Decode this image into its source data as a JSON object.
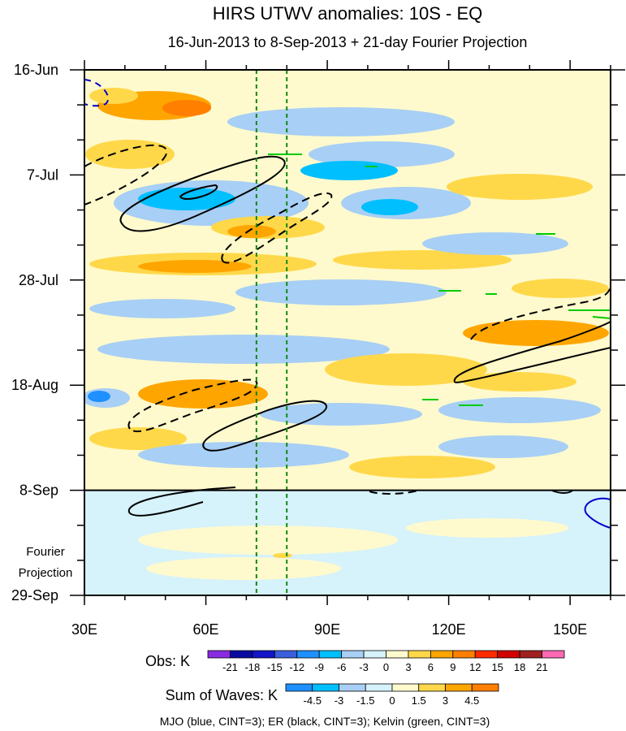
{
  "chart_data": {
    "type": "heatmap",
    "title": "HIRS UTWV anomalies: 10S - EQ",
    "subtitle": "16-Jun-2013 to 8-Sep-2013 + 21-day Fourier Projection",
    "x_ticks": [
      "30E",
      "60E",
      "90E",
      "120E",
      "150E"
    ],
    "x_tick_values": [
      30,
      60,
      90,
      120,
      150
    ],
    "xlim": [
      30,
      160
    ],
    "y_ticks": [
      "16-Jun",
      "7-Jul",
      "28-Jul",
      "18-Aug",
      "8-Sep",
      "29-Sep"
    ],
    "y_tick_days": [
      0,
      21,
      42,
      63,
      84,
      105
    ],
    "ylim_days": [
      0,
      105
    ],
    "projection_start_day": 84,
    "projection_label": [
      "Fourier",
      "Projection"
    ],
    "reference_longitudes": [
      72.5,
      80
    ],
    "obs_colorbar": {
      "label": "Obs: K",
      "levels": [
        "-21",
        "-18",
        "-15",
        "-12",
        "-9",
        "-6",
        "-3",
        "0",
        "3",
        "6",
        "9",
        "12",
        "15",
        "18",
        "21"
      ],
      "colors": [
        "#8a2be2",
        "#0a0aa0",
        "#1414c8",
        "#3a5fdc",
        "#1e90ff",
        "#00bfff",
        "#a8cff5",
        "#d6f2fb",
        "#fffacd",
        "#ffd84a",
        "#ffa500",
        "#ff7f00",
        "#ff2a00",
        "#d00000",
        "#a02020",
        "#ff69b4"
      ]
    },
    "waves_colorbar": {
      "label": "Sum of Waves: K",
      "levels": [
        "-4.5",
        "-3",
        "-1.5",
        "0",
        "1.5",
        "3",
        "4.5"
      ],
      "colors": [
        "#1e90ff",
        "#00bfff",
        "#a8cff5",
        "#d6f2fb",
        "#fffacd",
        "#ffd84a",
        "#ffa500",
        "#ff7f00"
      ]
    },
    "legend_text": "MJO (blue, CINT=3); ER (black, CINT=3); Kelvin (green, CINT=3)",
    "contour_colors": {
      "mjo": "#0000cc",
      "er": "#000000",
      "kelvin": "#00cc00"
    }
  }
}
